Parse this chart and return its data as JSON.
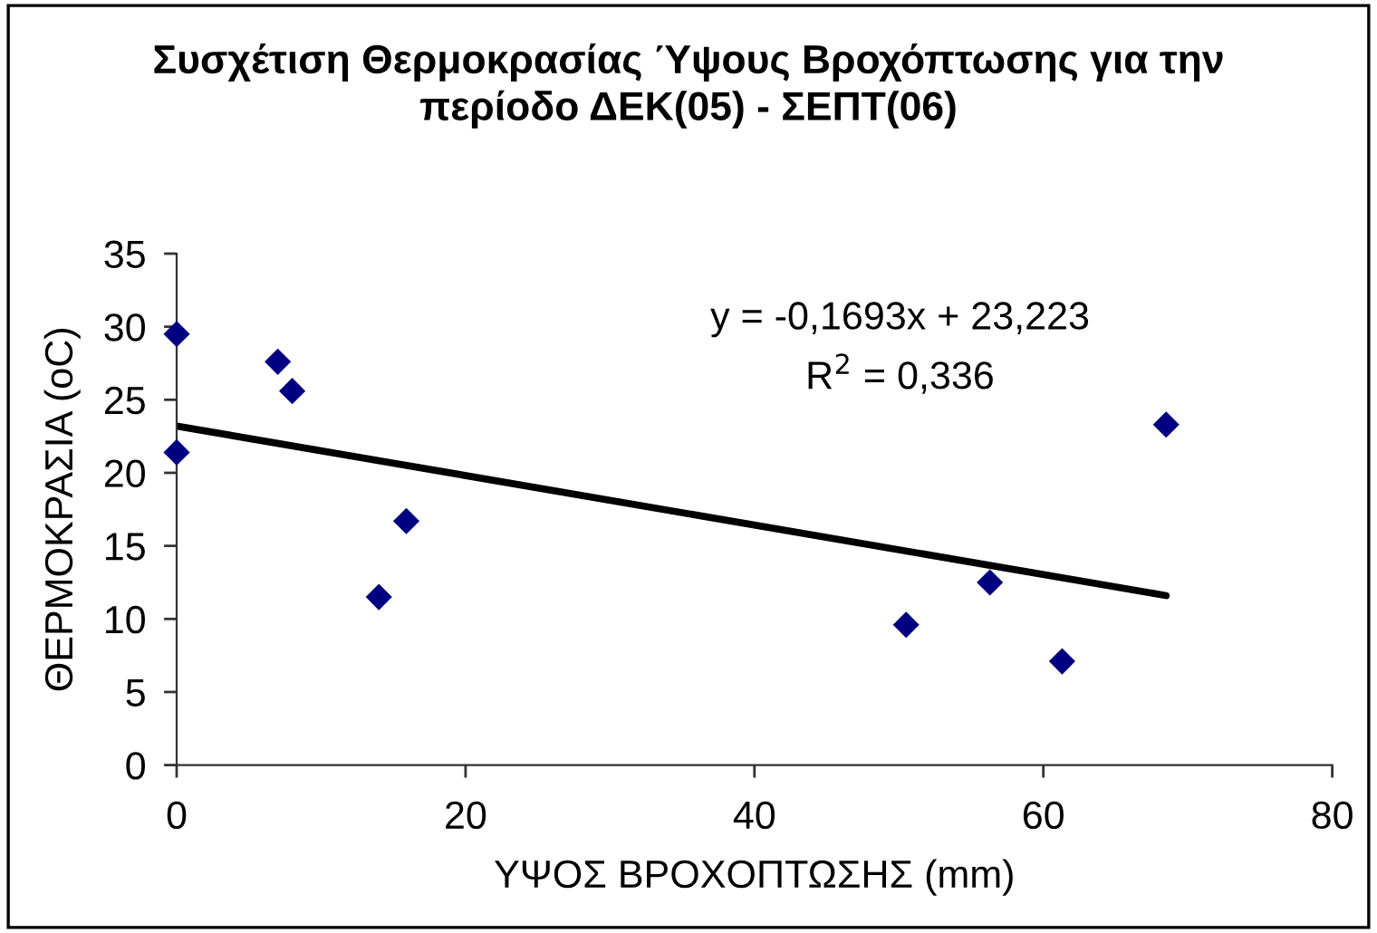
{
  "chart_data": {
    "type": "scatter",
    "title": "Συσχέτιση Θερμοκρασίας Ύψους Βροχόπτωσης για την\nπερίοδο ΔΕΚ(05) - ΣΕΠΤ(06)",
    "xlabel": "ΥΨΟΣ ΒΡΟΧΟΠΤΩΣΗΣ (mm)",
    "ylabel": "ΘΕΡΜΟΚΡΑΣΙΑ (oC)",
    "xlim": [
      0,
      80
    ],
    "xticks": [
      0,
      20,
      40,
      60,
      80
    ],
    "ylim": [
      0,
      35
    ],
    "yticks": [
      0,
      5,
      10,
      15,
      20,
      25,
      30,
      35
    ],
    "grid": false,
    "marker": "diamond",
    "series": [
      {
        "color": "#000080",
        "x": [
          0,
          0,
          7,
          8,
          14,
          15.9,
          50.5,
          56.3,
          61.3,
          68.5
        ],
        "values": [
          29.5,
          21.4,
          27.6,
          25.6,
          11.5,
          16.7,
          9.6,
          12.5,
          7.1,
          23.3
        ]
      },
      {
        "type": "line",
        "color": "#000000",
        "marker": "none",
        "x": [
          0,
          68.5
        ],
        "values": [
          23.2,
          11.6
        ]
      }
    ],
    "annotations": [
      "y = -0,1693x + 23,223",
      "R$^{2}$ = 0,336"
    ]
  }
}
